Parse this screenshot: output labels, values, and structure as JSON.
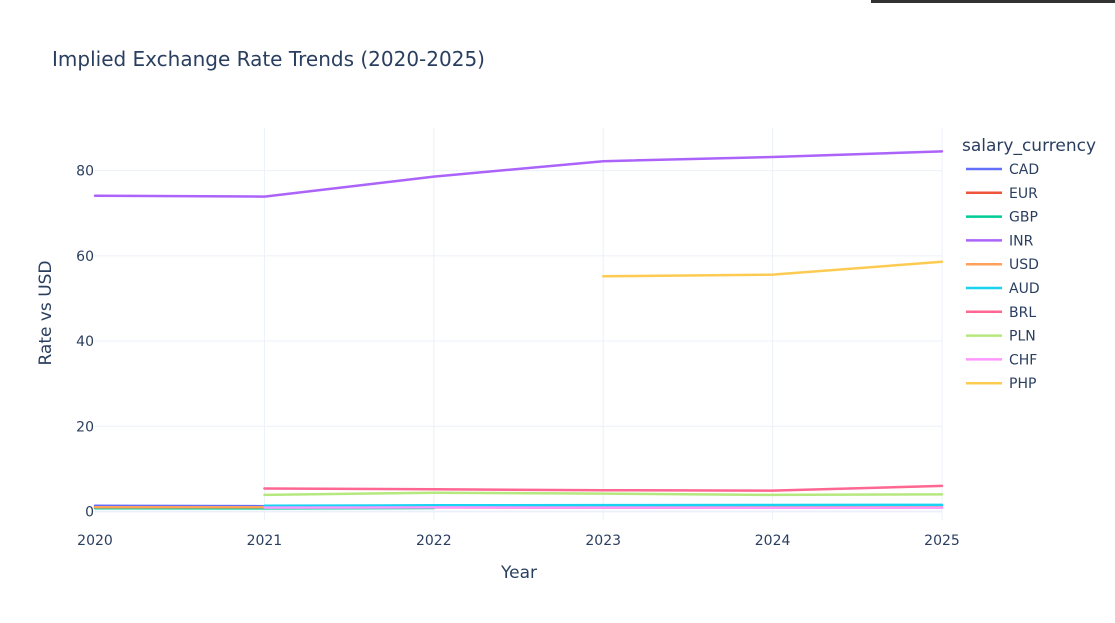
{
  "chart_data": {
    "type": "line",
    "title": "Implied Exchange Rate Trends (2020-2025)",
    "xlabel": "Year",
    "ylabel": "Rate vs USD",
    "x": [
      2020,
      2021,
      2022,
      2023,
      2024,
      2025
    ],
    "x_ticks": [
      "2020",
      "2021",
      "2022",
      "2023",
      "2024",
      "2025"
    ],
    "y_ticks": [
      0,
      20,
      40,
      60,
      80
    ],
    "xlim": [
      2020,
      2025
    ],
    "ylim": [
      -2,
      90
    ],
    "grid": true,
    "legend_title": "salary_currency",
    "legend_position": "right",
    "series": [
      {
        "name": "CAD",
        "color": "#636efa",
        "values": [
          1.34,
          1.25,
          1.3,
          1.35,
          1.35,
          1.4
        ]
      },
      {
        "name": "EUR",
        "color": "#ef553b",
        "values": [
          0.88,
          0.85,
          0.95,
          0.92,
          0.92,
          0.95
        ]
      },
      {
        "name": "GBP",
        "color": "#00cc96",
        "values": [
          0.78,
          0.73,
          0.81,
          null,
          null,
          null
        ]
      },
      {
        "name": "INR",
        "color": "#ab63fa",
        "values": [
          74.1,
          73.9,
          78.6,
          82.2,
          83.2,
          84.5
        ]
      },
      {
        "name": "USD",
        "color": "#ffa15a",
        "values": [
          1.0,
          1.0,
          1.0,
          1.0,
          1.0,
          1.0
        ]
      },
      {
        "name": "AUD",
        "color": "#19d3f3",
        "values": [
          null,
          1.33,
          1.44,
          1.5,
          1.52,
          1.55
        ]
      },
      {
        "name": "BRL",
        "color": "#ff6692",
        "values": [
          null,
          5.4,
          5.2,
          5.0,
          4.9,
          6.0
        ]
      },
      {
        "name": "PLN",
        "color": "#b6e880",
        "values": [
          null,
          3.9,
          4.4,
          4.2,
          3.9,
          4.0
        ]
      },
      {
        "name": "CHF",
        "color": "#ff97ff",
        "values": [
          null,
          0.91,
          0.95,
          0.9,
          0.88,
          0.9
        ]
      },
      {
        "name": "PHP",
        "color": "#fecb52",
        "values": [
          null,
          null,
          null,
          55.2,
          55.6,
          58.6
        ]
      }
    ]
  }
}
